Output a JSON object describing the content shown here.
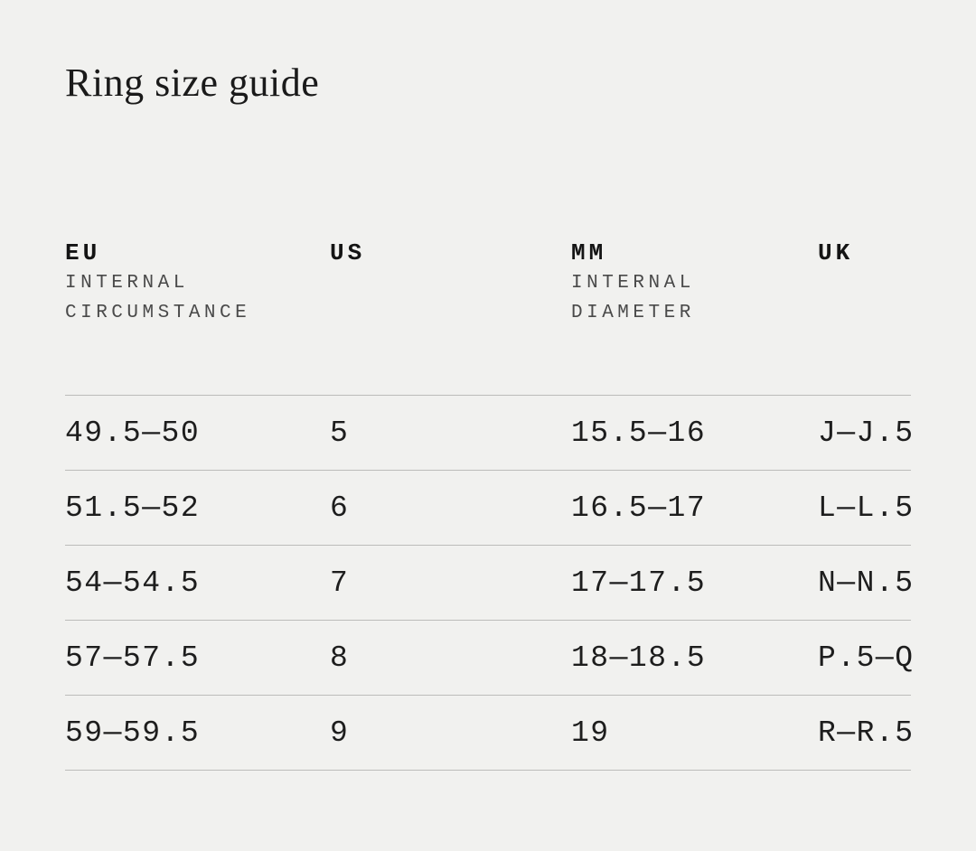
{
  "page": {
    "title": "Ring size guide"
  },
  "colors": {
    "background": "#f1f1ef",
    "text": "#1c1c1c",
    "subheader_text": "#4a4a4a",
    "divider": "#bcbcba"
  },
  "table": {
    "columns": [
      {
        "label": "EU",
        "sublines": [
          "INTERNAL",
          "CIRCUMSTANCE"
        ]
      },
      {
        "label": "US",
        "sublines": []
      },
      {
        "label": "MM",
        "sublines": [
          "INTERNAL",
          "DIAMETER"
        ]
      },
      {
        "label": "UK",
        "sublines": []
      }
    ],
    "rows": [
      [
        "49.5—50",
        "5",
        "15.5—16",
        "J—J.5"
      ],
      [
        "51.5—52",
        "6",
        "16.5—17",
        "L—L.5"
      ],
      [
        "54—54.5",
        "7",
        "17—17.5",
        "N—N.5"
      ],
      [
        "57—57.5",
        "8",
        "18—18.5",
        "P.5—Q"
      ],
      [
        "59—59.5",
        "9",
        "19",
        "R—R.5"
      ]
    ]
  }
}
